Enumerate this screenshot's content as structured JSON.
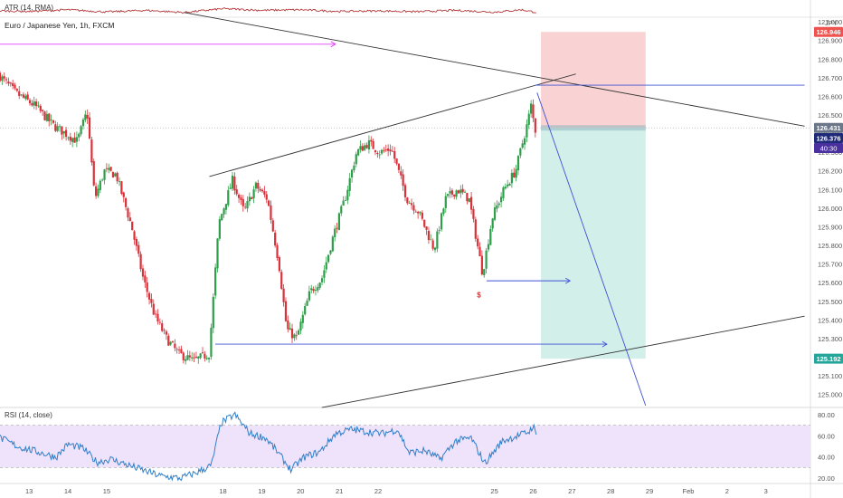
{
  "indicators": {
    "atr_label": "ATR (14, RMA)",
    "rsi_label": "RSI (14, close)"
  },
  "chart_title": "Euro / Japanese Yen, 1h, FXCM",
  "currency": "JPY",
  "colors": {
    "up": "#26a69a",
    "down": "#ef5350",
    "candle_up": "#2e9e4a",
    "candle_down": "#d9313a",
    "rsi_line": "#2f7fc9",
    "rsi_band": "#efe2fb",
    "atr_line": "#b2383a",
    "stop_zone": "#f9d3d3",
    "target_zone": "#d3efe9",
    "trend_line": "#333333",
    "level_line": "#3f51d6",
    "arrow_magenta": "#e040fb"
  },
  "chart_data": {
    "type": "candlestick",
    "x_axis": {
      "tick_labels": [
        "13",
        "14",
        "15",
        "18",
        "19",
        "20",
        "21",
        "22",
        "25",
        "26",
        "27",
        "28",
        "29",
        "Feb",
        "2",
        "3"
      ],
      "tick_days": [
        13,
        14,
        15,
        18,
        19,
        20,
        21,
        22,
        25,
        26,
        27,
        28,
        29,
        30,
        31,
        32
      ]
    },
    "y_axis": {
      "range": [
        124.94,
        127.02
      ],
      "tick_labels": [
        "127.000",
        "126.900",
        "126.800",
        "126.700",
        "126.600",
        "126.500",
        "126.400",
        "126.300",
        "126.200",
        "126.100",
        "126.000",
        "125.900",
        "125.800",
        "125.700",
        "125.600",
        "125.500",
        "125.400",
        "125.300",
        "125.200",
        "125.100",
        "125.000"
      ],
      "tick_values": [
        127.0,
        126.9,
        126.8,
        126.7,
        126.6,
        126.5,
        126.4,
        126.3,
        126.2,
        126.1,
        126.0,
        125.9,
        125.8,
        125.7,
        125.6,
        125.5,
        125.4,
        125.3,
        125.2,
        125.1,
        125.0
      ]
    },
    "price_badges": [
      {
        "label": "126.946",
        "value": 126.946,
        "color": "#ef5350"
      },
      {
        "label": "126.431",
        "value": 126.431,
        "color": "#6b7689"
      },
      {
        "label": "126.376",
        "value": 126.376,
        "color": "#1e2a78"
      },
      {
        "label": "125.192",
        "value": 125.192,
        "color": "#26a69a"
      }
    ],
    "countdown": {
      "label": "40:30"
    },
    "price_anchors": [
      {
        "day": 12.25,
        "price": 126.72
      },
      {
        "day": 12.7,
        "price": 126.62
      },
      {
        "day": 13.2,
        "price": 126.55
      },
      {
        "day": 13.7,
        "price": 126.44
      },
      {
        "day": 14.0,
        "price": 126.4
      },
      {
        "day": 14.3,
        "price": 126.36
      },
      {
        "day": 14.55,
        "price": 126.52
      },
      {
        "day": 14.75,
        "price": 126.05
      },
      {
        "day": 15.0,
        "price": 126.2
      },
      {
        "day": 15.3,
        "price": 126.18
      },
      {
        "day": 15.7,
        "price": 125.9
      },
      {
        "day": 16.0,
        "price": 125.62
      },
      {
        "day": 16.3,
        "price": 125.42
      },
      {
        "day": 16.6,
        "price": 125.3
      },
      {
        "day": 16.9,
        "price": 125.22
      },
      {
        "day": 17.3,
        "price": 125.18
      },
      {
        "day": 17.7,
        "price": 125.22
      },
      {
        "day": 17.95,
        "price": 125.92
      },
      {
        "day": 18.3,
        "price": 126.15
      },
      {
        "day": 18.6,
        "price": 125.98
      },
      {
        "day": 18.9,
        "price": 126.12
      },
      {
        "day": 19.2,
        "price": 126.05
      },
      {
        "day": 19.5,
        "price": 125.7
      },
      {
        "day": 19.7,
        "price": 125.35
      },
      {
        "day": 19.95,
        "price": 125.3
      },
      {
        "day": 20.3,
        "price": 125.55
      },
      {
        "day": 20.6,
        "price": 125.62
      },
      {
        "day": 20.9,
        "price": 125.85
      },
      {
        "day": 21.2,
        "price": 126.05
      },
      {
        "day": 21.5,
        "price": 126.3
      },
      {
        "day": 21.8,
        "price": 126.35
      },
      {
        "day": 22.1,
        "price": 126.3
      },
      {
        "day": 22.4,
        "price": 126.32
      },
      {
        "day": 22.8,
        "price": 126.05
      },
      {
        "day": 23.1,
        "price": 125.98
      },
      {
        "day": 23.5,
        "price": 125.78
      },
      {
        "day": 23.8,
        "price": 126.05
      },
      {
        "day": 24.1,
        "price": 126.1
      },
      {
        "day": 24.4,
        "price": 126.05
      },
      {
        "day": 24.55,
        "price": 125.88
      },
      {
        "day": 24.75,
        "price": 125.65
      },
      {
        "day": 25.0,
        "price": 125.95
      },
      {
        "day": 25.3,
        "price": 126.1
      },
      {
        "day": 25.6,
        "price": 126.2
      },
      {
        "day": 25.9,
        "price": 126.45
      },
      {
        "day": 26.0,
        "price": 126.55
      },
      {
        "day": 26.1,
        "price": 126.42
      }
    ],
    "rsi": {
      "y_range": [
        15,
        85
      ],
      "tick_labels": [
        "80.00",
        "60.00",
        "40.00",
        "20.00"
      ],
      "tick_values": [
        80,
        60,
        40,
        20
      ],
      "upper_band": 70,
      "lower_band": 30,
      "anchors": [
        {
          "day": 12.25,
          "value": 58
        },
        {
          "day": 12.7,
          "value": 50
        },
        {
          "day": 13.2,
          "value": 45
        },
        {
          "day": 13.7,
          "value": 40
        },
        {
          "day": 14.0,
          "value": 52
        },
        {
          "day": 14.4,
          "value": 48
        },
        {
          "day": 14.75,
          "value": 35
        },
        {
          "day": 15.1,
          "value": 38
        },
        {
          "day": 15.5,
          "value": 33
        },
        {
          "day": 15.9,
          "value": 28
        },
        {
          "day": 16.4,
          "value": 22
        },
        {
          "day": 16.9,
          "value": 20
        },
        {
          "day": 17.3,
          "value": 25
        },
        {
          "day": 17.7,
          "value": 32
        },
        {
          "day": 17.95,
          "value": 72
        },
        {
          "day": 18.3,
          "value": 80
        },
        {
          "day": 18.7,
          "value": 62
        },
        {
          "day": 19.1,
          "value": 58
        },
        {
          "day": 19.4,
          "value": 45
        },
        {
          "day": 19.75,
          "value": 28
        },
        {
          "day": 20.1,
          "value": 40
        },
        {
          "day": 20.5,
          "value": 45
        },
        {
          "day": 20.9,
          "value": 62
        },
        {
          "day": 21.3,
          "value": 66
        },
        {
          "day": 21.7,
          "value": 64
        },
        {
          "day": 22.1,
          "value": 62
        },
        {
          "day": 22.5,
          "value": 66
        },
        {
          "day": 22.8,
          "value": 44
        },
        {
          "day": 23.2,
          "value": 46
        },
        {
          "day": 23.6,
          "value": 38
        },
        {
          "day": 24.0,
          "value": 55
        },
        {
          "day": 24.4,
          "value": 58
        },
        {
          "day": 24.75,
          "value": 34
        },
        {
          "day": 25.2,
          "value": 55
        },
        {
          "day": 25.6,
          "value": 60
        },
        {
          "day": 25.9,
          "value": 64
        },
        {
          "day": 26.0,
          "value": 70
        },
        {
          "day": 26.1,
          "value": 57
        }
      ]
    },
    "atr": {
      "anchors": [
        {
          "day": 12.25,
          "value": 0.5
        },
        {
          "day": 13.0,
          "value": 0.45
        },
        {
          "day": 14.0,
          "value": 0.6
        },
        {
          "day": 15.0,
          "value": 0.4
        },
        {
          "day": 16.0,
          "value": 0.55
        },
        {
          "day": 17.0,
          "value": 0.35
        },
        {
          "day": 18.0,
          "value": 0.7
        },
        {
          "day": 19.0,
          "value": 0.55
        },
        {
          "day": 20.0,
          "value": 0.6
        },
        {
          "day": 21.0,
          "value": 0.45
        },
        {
          "day": 22.0,
          "value": 0.5
        },
        {
          "day": 23.0,
          "value": 0.42
        },
        {
          "day": 24.0,
          "value": 0.55
        },
        {
          "day": 25.0,
          "value": 0.38
        },
        {
          "day": 25.7,
          "value": 0.6
        },
        {
          "day": 26.1,
          "value": 0.35
        }
      ]
    },
    "position": {
      "entry": 126.431,
      "stop": 126.946,
      "target": 125.192,
      "start_day": 26.2,
      "end_day": 28.9
    },
    "drawings": {
      "trend_lines": [
        {
          "from": {
            "day": 17.0,
            "price": 127.05
          },
          "to": {
            "day": 33.0,
            "price": 126.44
          }
        },
        {
          "from": {
            "day": 17.65,
            "price": 126.17
          },
          "to": {
            "day": 27.1,
            "price": 126.72
          }
        },
        {
          "from": {
            "day": 20.55,
            "price": 124.93
          },
          "to": {
            "day": 33.0,
            "price": 125.42
          }
        }
      ],
      "level_lines": [
        {
          "from": {
            "day": 26.05,
            "price": 126.66
          },
          "to": {
            "day": 33.0,
            "price": 126.66
          }
        },
        {
          "from": {
            "day": 17.8,
            "price": 125.27
          },
          "to": {
            "day": 27.9,
            "price": 125.27
          },
          "arrow": true
        },
        {
          "from": {
            "day": 24.8,
            "price": 125.61
          },
          "to": {
            "day": 26.95,
            "price": 125.61
          },
          "arrow": true
        }
      ],
      "projection_line": {
        "from": {
          "day": 26.1,
          "price": 126.62
        },
        "to": {
          "day": 28.9,
          "price": 124.94
        }
      },
      "magenta_arrow": {
        "from": {
          "day": 12.2,
          "price": 126.88
        },
        "to": {
          "day": 20.9,
          "price": 126.88
        }
      },
      "marker": {
        "day": 24.6,
        "price": 125.57,
        "label": "$"
      }
    }
  }
}
